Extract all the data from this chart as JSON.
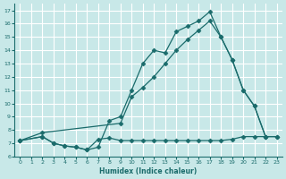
{
  "xlabel": "Humidex (Indice chaleur)",
  "bg_color": "#c8e8e8",
  "grid_color": "#afd8d8",
  "line_color": "#1a6b6b",
  "xlim": [
    -0.5,
    23.5
  ],
  "ylim": [
    6,
    17.5
  ],
  "xticks": [
    0,
    1,
    2,
    3,
    4,
    5,
    6,
    7,
    8,
    9,
    10,
    11,
    12,
    13,
    14,
    15,
    16,
    17,
    18,
    19,
    20,
    21,
    22,
    23
  ],
  "yticks": [
    6,
    7,
    8,
    9,
    10,
    11,
    12,
    13,
    14,
    15,
    16,
    17
  ],
  "line1_x": [
    0,
    2,
    3,
    4,
    5,
    6,
    7,
    8,
    9,
    10,
    11,
    12,
    13,
    14,
    15,
    16,
    17,
    18,
    19,
    20,
    21,
    22
  ],
  "line1_y": [
    7.2,
    7.5,
    7.0,
    6.8,
    6.7,
    6.5,
    6.7,
    8.7,
    9.0,
    11.0,
    13.0,
    14.0,
    13.8,
    15.4,
    15.8,
    16.2,
    16.9,
    15.0,
    13.3,
    11.0,
    9.8,
    7.5
  ],
  "line2_x": [
    0,
    2,
    9,
    10,
    11,
    12,
    13,
    14,
    15,
    16,
    17,
    18,
    19,
    20,
    21,
    22,
    23
  ],
  "line2_y": [
    7.2,
    7.8,
    8.5,
    10.5,
    11.2,
    12.0,
    13.0,
    14.0,
    14.8,
    15.5,
    16.2,
    15.0,
    13.3,
    11.0,
    9.8,
    7.5,
    7.5
  ],
  "line3_x": [
    0,
    2,
    3,
    4,
    5,
    6,
    7,
    8,
    9,
    10,
    11,
    12,
    13,
    14,
    15,
    16,
    17,
    18,
    19,
    20,
    21,
    22,
    23
  ],
  "line3_y": [
    7.2,
    7.5,
    7.0,
    6.8,
    6.7,
    6.5,
    7.3,
    7.4,
    7.2,
    7.2,
    7.2,
    7.2,
    7.2,
    7.2,
    7.2,
    7.2,
    7.2,
    7.2,
    7.3,
    7.5,
    7.5,
    7.5,
    7.5
  ]
}
